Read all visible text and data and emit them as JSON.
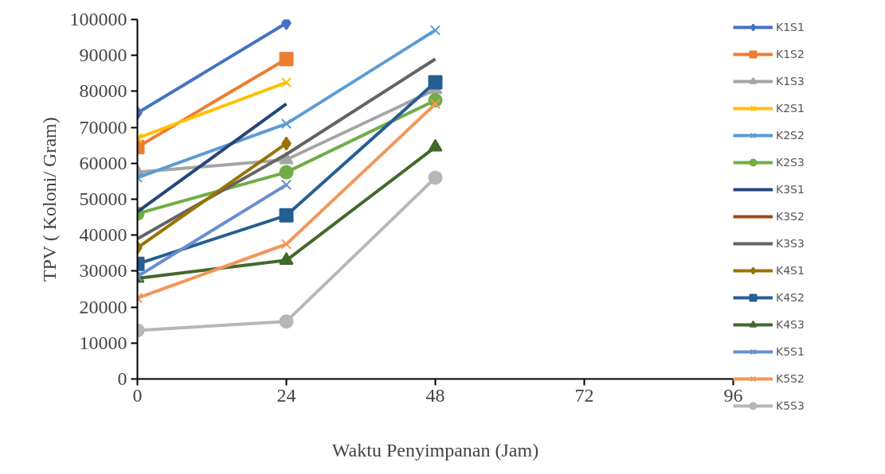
{
  "chart_data": {
    "type": "line",
    "xlabel": "Waktu Penyimpanan (Jam)",
    "ylabel": "TPV ( Koloni/ Gram)",
    "x": [
      0,
      24,
      48
    ],
    "xlim": [
      0,
      96
    ],
    "xticks": [
      0,
      24,
      48,
      72,
      96
    ],
    "ylim": [
      0,
      100000
    ],
    "yticks": [
      0,
      10000,
      20000,
      30000,
      40000,
      50000,
      60000,
      70000,
      80000,
      90000,
      100000
    ],
    "grid": false,
    "legend": "right",
    "line_style": "solid",
    "series": [
      {
        "name": "K1S1",
        "color": "#4472c4",
        "marker": "diamond",
        "values": [
          74000,
          99000,
          null
        ]
      },
      {
        "name": "K1S2",
        "color": "#ed7d31",
        "marker": "square",
        "values": [
          64500,
          89000,
          null
        ]
      },
      {
        "name": "K1S3",
        "color": "#a5a5a5",
        "marker": "triangle",
        "values": [
          57500,
          61000,
          80500
        ]
      },
      {
        "name": "K2S1",
        "color": "#ffc000",
        "marker": "cross",
        "values": [
          67000,
          82500,
          null
        ]
      },
      {
        "name": "K2S2",
        "color": "#5b9bd5",
        "marker": "cross",
        "values": [
          56000,
          71000,
          97000
        ]
      },
      {
        "name": "K2S3",
        "color": "#70ad47",
        "marker": "circle",
        "values": [
          46000,
          57500,
          77500
        ]
      },
      {
        "name": "K3S1",
        "color": "#264478",
        "marker": "none",
        "values": [
          46500,
          76500,
          null
        ]
      },
      {
        "name": "K3S2",
        "color": "#9e480e",
        "marker": "none",
        "values": [
          null,
          null,
          null
        ]
      },
      {
        "name": "K3S3",
        "color": "#636363",
        "marker": "none",
        "values": [
          39000,
          62500,
          89000
        ]
      },
      {
        "name": "K4S1",
        "color": "#997300",
        "marker": "diamond",
        "values": [
          36500,
          65500,
          null
        ]
      },
      {
        "name": "K4S2",
        "color": "#255e91",
        "marker": "square",
        "values": [
          32000,
          45500,
          82500
        ]
      },
      {
        "name": "K4S3",
        "color": "#43682b",
        "marker": "triangle",
        "values": [
          28000,
          33000,
          64500
        ]
      },
      {
        "name": "K5S1",
        "color": "#698ed0",
        "marker": "cross",
        "values": [
          28500,
          54000,
          null
        ]
      },
      {
        "name": "K5S2",
        "color": "#f1975a",
        "marker": "cross",
        "values": [
          22500,
          37500,
          76500
        ]
      },
      {
        "name": "K5S3",
        "color": "#b7b7b7",
        "marker": "circle",
        "values": [
          13500,
          16000,
          56000
        ]
      }
    ]
  }
}
